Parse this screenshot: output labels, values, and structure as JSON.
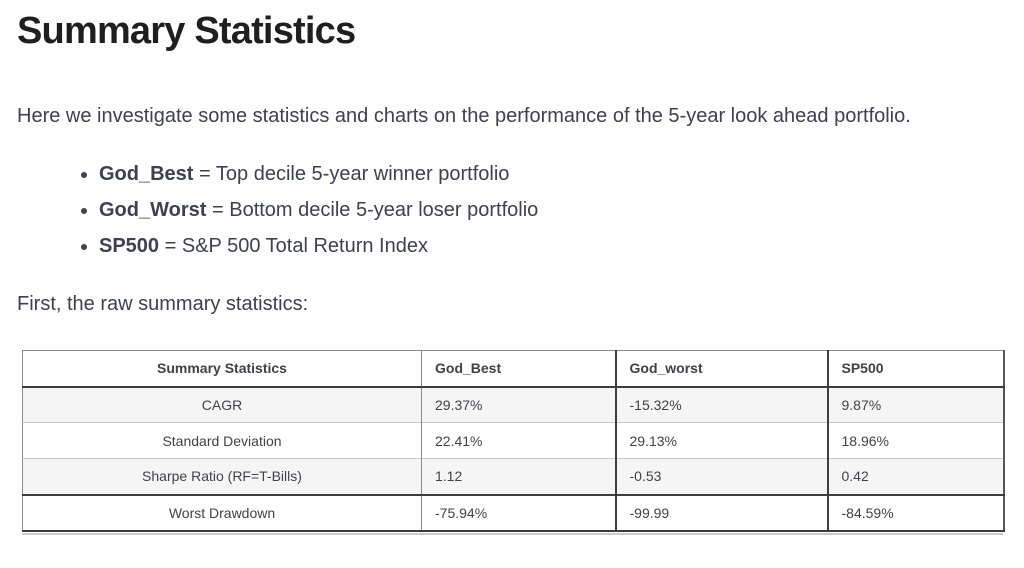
{
  "page": {
    "title": "Summary Statistics",
    "intro": "Here we investigate some statistics and charts on the performance of the 5-year look ahead portfolio.",
    "definitions": [
      {
        "term": "God_Best",
        "eq": "=",
        "description": "Top decile 5-year winner portfolio"
      },
      {
        "term": "God_Worst",
        "eq": "=",
        "description": "Bottom decile 5-year loser portfolio"
      },
      {
        "term": "SP500",
        "eq": "=",
        "description": "S&P 500 Total Return Index"
      }
    ],
    "table_intro": "First, the raw summary statistics:"
  },
  "stats_table": {
    "headers": [
      "Summary Statistics",
      "God_Best",
      "God_worst",
      "SP500"
    ],
    "rows": [
      {
        "label": "CAGR",
        "values": [
          "29.37%",
          "-15.32%",
          "9.87%"
        ]
      },
      {
        "label": "Standard Deviation",
        "values": [
          "22.41%",
          "29.13%",
          "18.96%"
        ]
      },
      {
        "label": "Sharpe Ratio (RF=T-Bills)",
        "values": [
          "1.12",
          "-0.53",
          "0.42"
        ]
      },
      {
        "label": "Worst Drawdown",
        "values": [
          "-75.94%",
          "-99.99",
          "-84.59%"
        ]
      }
    ]
  },
  "colors": {
    "heading_text": "#1f1f1f",
    "body_text": "#3b4254",
    "table_text": "#3f4347",
    "stripe_row_bg": "#f5f5f6",
    "dark_border": "#3d3d3d",
    "light_border": "#c6c6c6",
    "page_bg": "#ffffff"
  }
}
